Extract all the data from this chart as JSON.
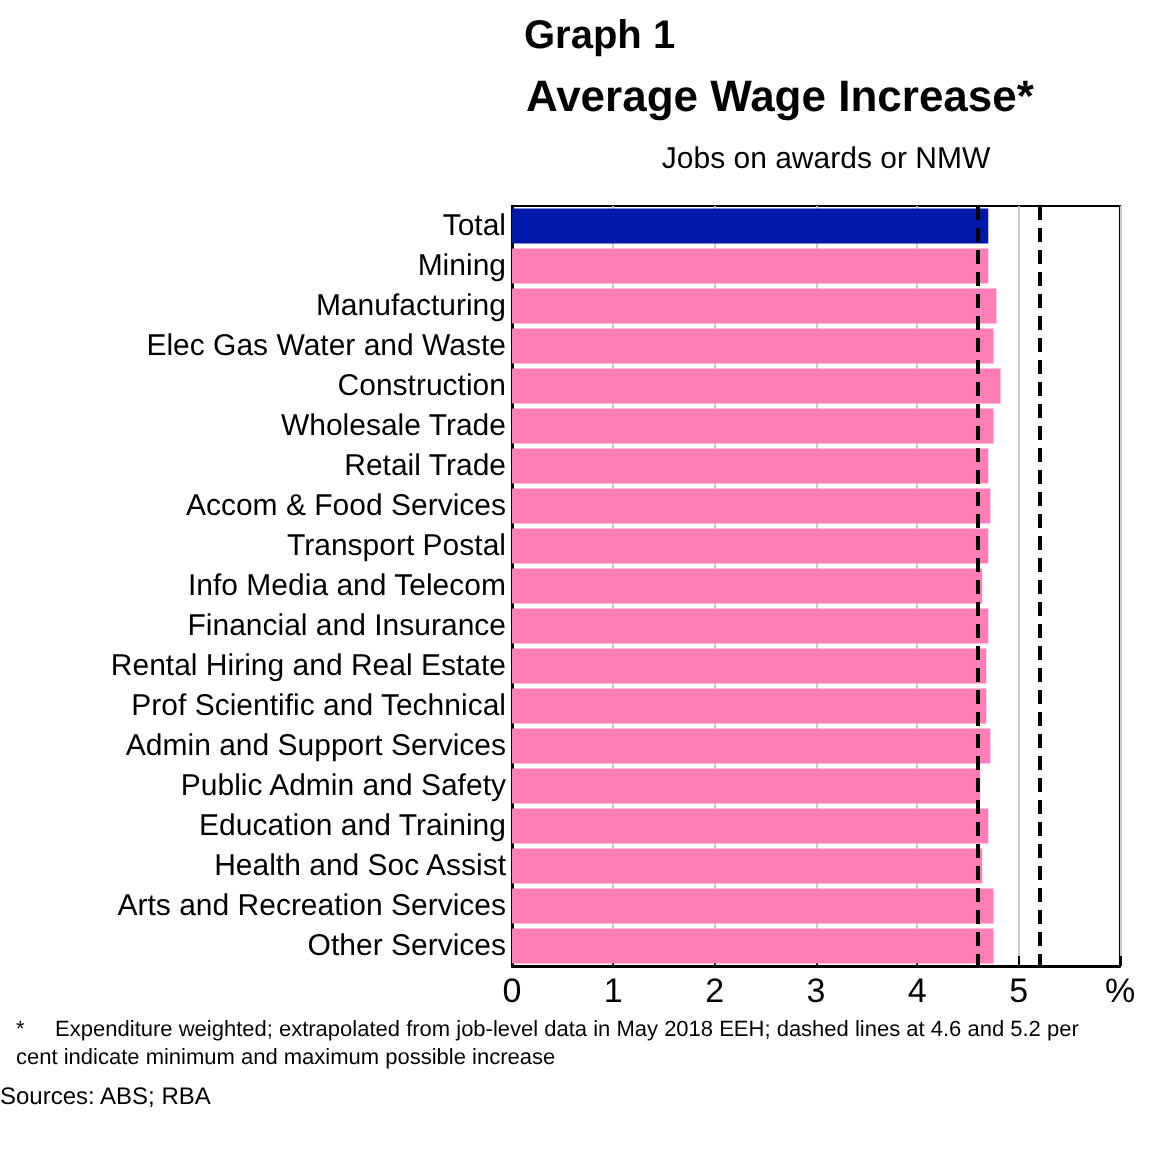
{
  "chart_data": {
    "type": "bar",
    "orientation": "horizontal",
    "title": "Average Wage Increase*",
    "subtitle": "Jobs on awards or NMW",
    "categories": [
      "Total",
      "Mining",
      "Manufacturing",
      "Elec Gas Water and Waste",
      "Construction",
      "Wholesale Trade",
      "Retail Trade",
      "Accom & Food Services",
      "Transport Postal",
      "Info Media and Telecom",
      "Financial and Insurance",
      "Rental Hiring and Real Estate",
      "Prof Scientific and Technical",
      "Admin and Support Services",
      "Public Admin and Safety",
      "Education and Training",
      "Health and Soc Assist",
      "Arts and Recreation Services",
      "Other Services"
    ],
    "values": [
      4.7,
      4.7,
      4.78,
      4.75,
      4.82,
      4.75,
      4.7,
      4.72,
      4.7,
      4.64,
      4.7,
      4.68,
      4.68,
      4.72,
      4.62,
      4.7,
      4.64,
      4.75,
      4.75
    ],
    "colors": [
      "#0019a8",
      "#ff7eb6",
      "#ff7eb6",
      "#ff7eb6",
      "#ff7eb6",
      "#ff7eb6",
      "#ff7eb6",
      "#ff7eb6",
      "#ff7eb6",
      "#ff7eb6",
      "#ff7eb6",
      "#ff7eb6",
      "#ff7eb6",
      "#ff7eb6",
      "#ff7eb6",
      "#ff7eb6",
      "#ff7eb6",
      "#ff7eb6",
      "#ff7eb6"
    ],
    "xlim": [
      0,
      6
    ],
    "xticks": [
      0,
      1,
      2,
      3,
      4,
      5,
      {
        "value": 6,
        "label": "%"
      }
    ],
    "grid": "x",
    "ref_lines": [
      {
        "axis": "x",
        "value": 4.6,
        "label": null,
        "color": "#000000",
        "line_style": "dashed"
      },
      {
        "axis": "x",
        "value": 5.2,
        "label": null,
        "color": "#000000",
        "line_style": "dashed"
      }
    ],
    "annotations": [
      "Graph 1",
      "*     Expenditure weighted; extrapolated from job-level data in May 2018 EEH; dashed lines at 4.6 and 5.2 per cent indicate minimum and maximum possible increase",
      "Sources: ABS; RBA"
    ]
  }
}
